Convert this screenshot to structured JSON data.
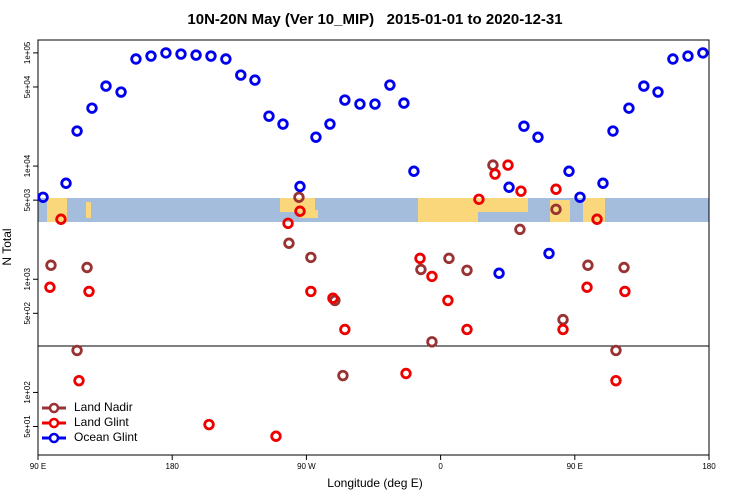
{
  "chart_data": {
    "type": "scatter",
    "title": "10N-20N May (Ver 10_MIP)   2015-01-01 to 2020-12-31",
    "x_label": "Longitude (deg E)",
    "y_label": "N Total",
    "y_log": true,
    "legend": "bottom left",
    "xlim": [
      90,
      540
    ],
    "ylim": [
      28,
      130000
    ],
    "xticks": [
      {
        "value": 90,
        "label": "90 E"
      },
      180,
      {
        "value": 270,
        "label": "90 W"
      },
      {
        "value": 360,
        "label": "0"
      },
      {
        "value": 450,
        "label": "90 E"
      },
      {
        "value": 540,
        "label": "180"
      }
    ],
    "yticks": [
      {
        "value": 50,
        "label": "5e+01"
      },
      {
        "value": 100,
        "label": "1e+02"
      },
      {
        "value": 500,
        "label": "5e+02"
      },
      {
        "value": 1000,
        "label": "1e+03"
      },
      {
        "value": 5000,
        "label": "5e+03"
      },
      {
        "value": 10000,
        "label": "1e+04"
      },
      {
        "value": 50000,
        "label": "5e+04"
      },
      {
        "value": 100000,
        "label": "1e+05"
      }
    ],
    "series": [
      {
        "name": "Land Nadir",
        "color": "#993333",
        "x": [
          98.7,
          116.2,
          122.9,
          258.3,
          265.0,
          273.0,
          289.1,
          294.5,
          354.2,
          346.8,
          365.6,
          377.7,
          395.1,
          413.2,
          437.4,
          442.1,
          458.8,
          477.6,
          483.0
        ],
        "values": [
          1330,
          235,
          1270,
          2080,
          5300,
          1560,
          650,
          141,
          280,
          1220,
          1530,
          1200,
          10200,
          2760,
          4150,
          440,
          1330,
          235,
          1270
        ]
      },
      {
        "name": "Land Glint",
        "color": "#ee0000",
        "x": [
          98.0,
          105.4,
          124.2,
          117.5,
          204.7,
          249.6,
          257.7,
          265.7,
          273.0,
          287.8,
          295.8,
          336.8,
          346.2,
          354.2,
          364.9,
          377.7,
          385.7,
          396.5,
          405.2,
          413.9,
          437.4,
          442.1,
          464.9,
          458.2,
          483.6,
          477.6
        ],
        "values": [
          850,
          3390,
          780,
          127,
          52,
          41,
          3120,
          3990,
          780,
          680,
          360,
          147,
          1530,
          1060,
          650,
          360,
          5090,
          8500,
          10200,
          6000,
          6240,
          360,
          3390,
          850,
          780,
          127
        ]
      },
      {
        "name": "Ocean Glint",
        "color": "#0000ee",
        "x": [
          93.4,
          108.8,
          116.2,
          126.2,
          135.6,
          145.7,
          155.7,
          165.8,
          175.8,
          185.9,
          196.0,
          206.0,
          216.0,
          226.0,
          235.5,
          244.9,
          254.3,
          265.7,
          276.4,
          285.8,
          295.8,
          305.9,
          316.0,
          326.0,
          335.4,
          342.1,
          399.2,
          405.9,
          415.9,
          425.3,
          432.7,
          446.1,
          453.5,
          468.9,
          475.6,
          486.3,
          496.3,
          505.8,
          515.8,
          525.9,
          535.9
        ],
        "values": [
          5300,
          7050,
          20400,
          32500,
          50900,
          45100,
          88300,
          93800,
          100000,
          97700,
          95700,
          93800,
          88300,
          63700,
          57500,
          27600,
          23500,
          6600,
          18000,
          23500,
          38300,
          35300,
          35300,
          52000,
          36000,
          9000,
          1130,
          6500,
          22500,
          18000,
          1690,
          9000,
          5300,
          7050,
          20400,
          32500,
          50900,
          45100,
          88300,
          93800,
          100000
        ]
      }
    ]
  }
}
